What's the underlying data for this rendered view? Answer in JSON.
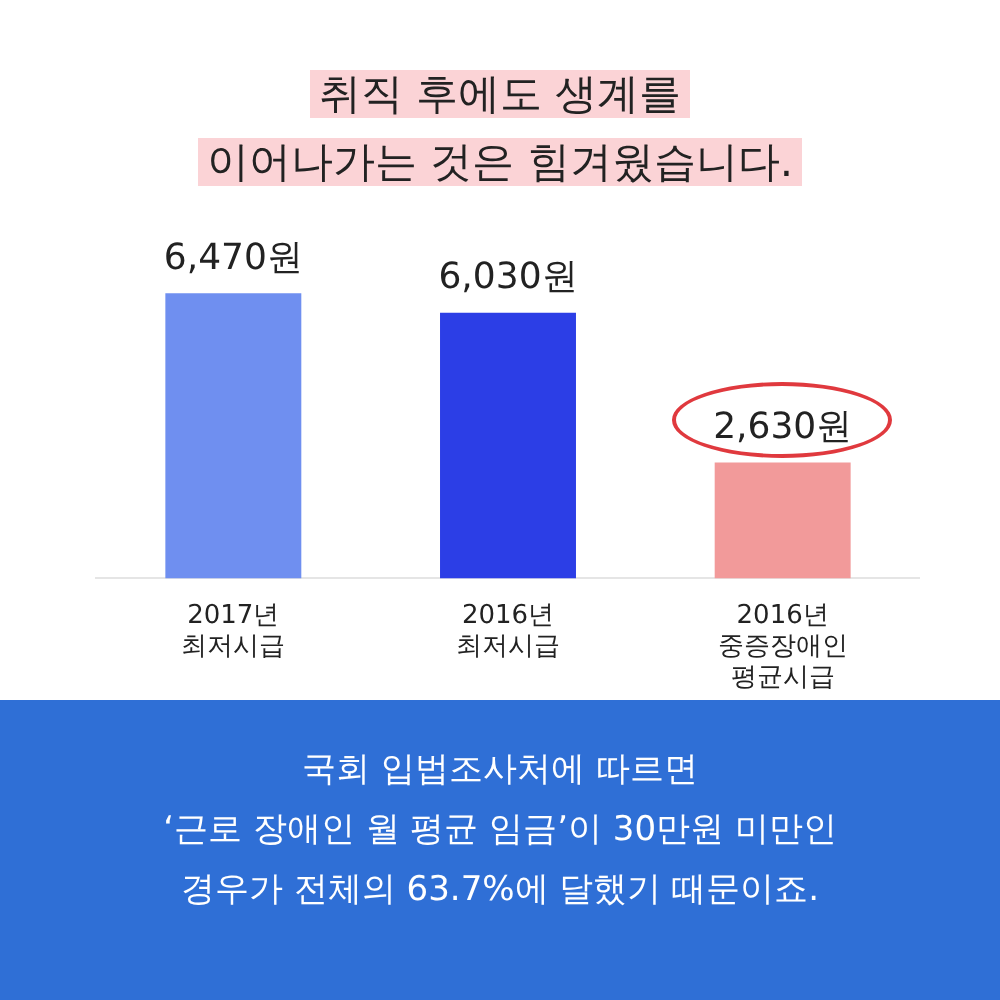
{
  "chart_data": {
    "type": "bar",
    "title": "취직 후에도 생계를\n이어나가는 것은 힘겨웠습니다.",
    "categories": [
      "2017년\n최저시급",
      "2016년\n최저시급",
      "2016년\n중증장애인\n평균시급"
    ],
    "values": [
      6470,
      6030,
      2630
    ],
    "value_labels": [
      "6,470원",
      "6,030원",
      "2,630원"
    ],
    "colors": [
      "#6f8ff0",
      "#2c3ee6",
      "#f29a9a"
    ],
    "annotations": [
      "국회 입법조사처에 따르면\n‘근로 장애인 월 평균 임금’이 30만원 미만인\n경우가 전체의 63.7%에 달했기 때문이죠."
    ]
  }
}
